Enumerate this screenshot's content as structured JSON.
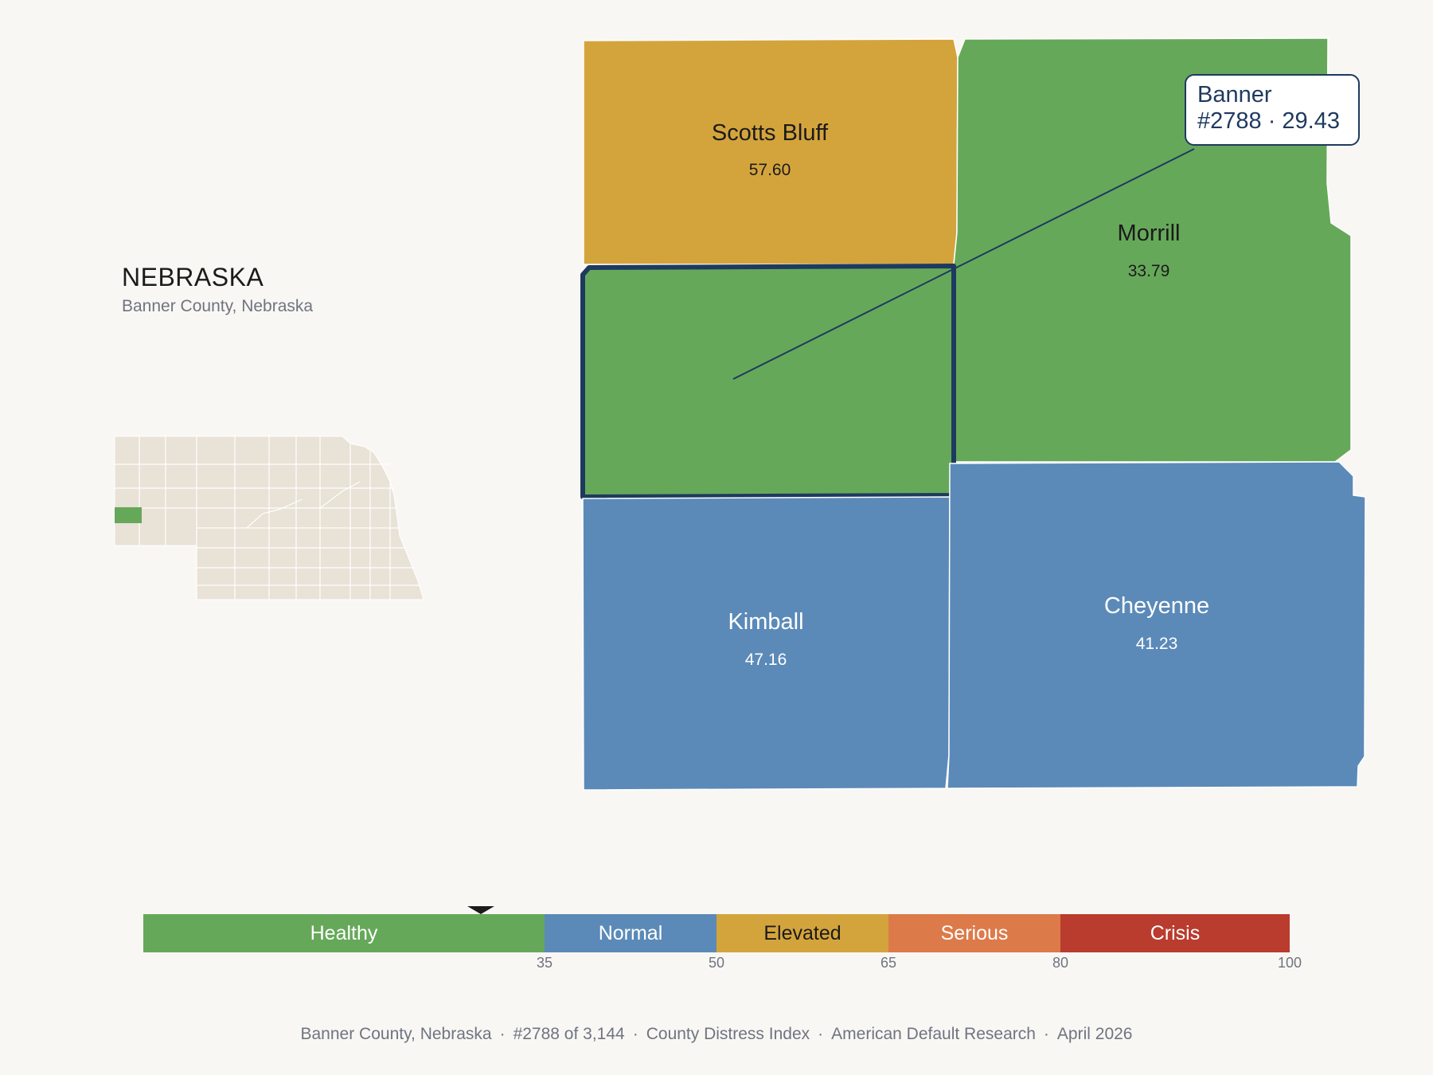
{
  "header": {
    "state": "NEBRASKA",
    "subtitle": "Banner County, Nebraska"
  },
  "colors": {
    "healthy": "#66a85a",
    "normal": "#5b8ab8",
    "elevated": "#d4a43c",
    "serious": "#dd7a4a",
    "crisis": "#b93c2e",
    "inset_fill": "#e8e2d7",
    "highlight_stroke": "#1e3a5f"
  },
  "map": {
    "counties": [
      {
        "name": "Scotts Bluff",
        "score": "57.60",
        "category": "elevated"
      },
      {
        "name": "Morrill",
        "score": "33.79",
        "category": "healthy"
      },
      {
        "name": "Banner",
        "score": "29.43",
        "category": "healthy"
      },
      {
        "name": "Kimball",
        "score": "47.16",
        "category": "normal"
      },
      {
        "name": "Cheyenne",
        "score": "41.23",
        "category": "normal"
      }
    ],
    "callout": {
      "name": "Banner",
      "detail": "#2788 · 29.43"
    }
  },
  "legend": {
    "segments": [
      {
        "label": "Healthy",
        "from": 0,
        "to": 35,
        "category": "healthy"
      },
      {
        "label": "Normal",
        "from": 35,
        "to": 50,
        "category": "normal"
      },
      {
        "label": "Elevated",
        "from": 50,
        "to": 65,
        "category": "elevated"
      },
      {
        "label": "Serious",
        "from": 65,
        "to": 80,
        "category": "serious"
      },
      {
        "label": "Crisis",
        "from": 80,
        "to": 100,
        "category": "crisis"
      }
    ],
    "ticks": [
      "35",
      "50",
      "65",
      "80",
      "100"
    ],
    "marker_value": 29.43
  },
  "footer": {
    "county": "Banner County, Nebraska",
    "rank": "#2788 of 3,144",
    "index": "County Distress Index",
    "source": "American Default Research",
    "date": "April 2026"
  }
}
